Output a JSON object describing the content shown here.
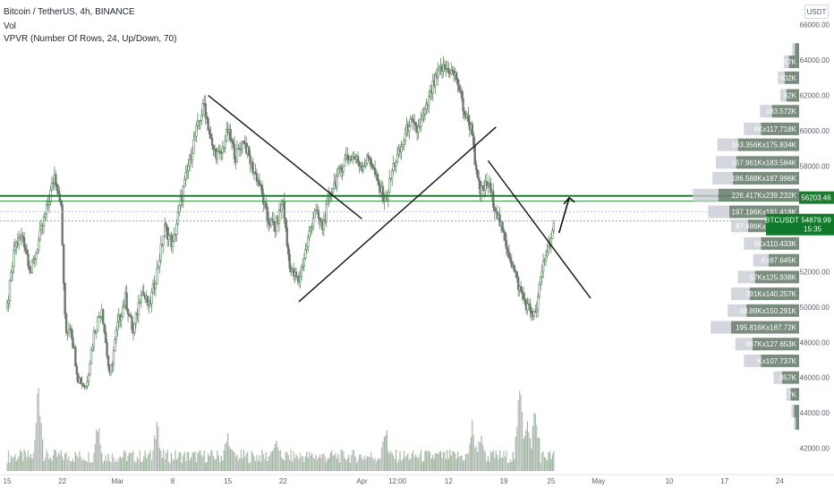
{
  "header": {
    "symbol_line": "Bitcoin / TetherUS, 4h, BINANCE",
    "volume_label": "Vol",
    "vpvr_label": "VPVR (Number Of Rows, 24, Up/Down, 70)"
  },
  "unit_button": "USDT",
  "price_marker": {
    "symbol": "BTCUSDT",
    "price": "54879.99",
    "countdown": "15:35"
  },
  "line_marker": {
    "price": "56203.46",
    "level": 56203.46
  },
  "colors": {
    "up": "#5a8a5f",
    "down": "#6d7a6d",
    "accent_green": "#1e7a2e",
    "marker_green": "#0f7a2a",
    "trend": "#111111",
    "vp_up": "#6b7f6f",
    "vp_down": "#c8ccd4"
  },
  "chart_data": {
    "type": "candlestick",
    "price_axis": [
      "66000.00",
      "64000.00",
      "62000.00",
      "60000.00",
      "58000.00",
      "56000.00",
      "52000.00",
      "50000.00",
      "48000.00",
      "46000.00",
      "44000.00",
      "42000.00"
    ],
    "price_axis_values": [
      66000,
      64000,
      62000,
      60000,
      58000,
      56000,
      52000,
      50000,
      48000,
      46000,
      44000,
      42000
    ],
    "time_axis": [
      {
        "label": "15",
        "day": 0
      },
      {
        "label": "22",
        "day": 7
      },
      {
        "label": "Mar",
        "day": 14
      },
      {
        "label": "8",
        "day": 21
      },
      {
        "label": "15",
        "day": 28
      },
      {
        "label": "22",
        "day": 35
      },
      {
        "label": "Apr",
        "day": 45
      },
      {
        "label": "12:00",
        "day": 49.5
      },
      {
        "label": "12",
        "day": 56
      },
      {
        "label": "19",
        "day": 63
      },
      {
        "label": "25",
        "day": 69
      },
      {
        "label": "May",
        "day": 75
      },
      {
        "label": "10",
        "day": 84
      },
      {
        "label": "17",
        "day": 91
      },
      {
        "label": "24",
        "day": 98
      }
    ],
    "ylim": [
      40500,
      67000
    ],
    "price_anchors": [
      [
        -1,
        51000
      ],
      [
        0,
        50000
      ],
      [
        1,
        53500
      ],
      [
        2,
        54000
      ],
      [
        3,
        52000
      ],
      [
        5,
        55500
      ],
      [
        6,
        57500
      ],
      [
        6.8,
        56000
      ],
      [
        7.4,
        48500
      ],
      [
        8,
        49000
      ],
      [
        9,
        46000
      ],
      [
        10,
        45500
      ],
      [
        11,
        48500
      ],
      [
        12,
        50000
      ],
      [
        13,
        46000
      ],
      [
        14,
        49000
      ],
      [
        15,
        50500
      ],
      [
        16,
        48500
      ],
      [
        17,
        51000
      ],
      [
        18,
        50000
      ],
      [
        19,
        52000
      ],
      [
        20,
        54500
      ],
      [
        21,
        53500
      ],
      [
        22,
        56000
      ],
      [
        23,
        58000
      ],
      [
        24,
        60000
      ],
      [
        25,
        61500
      ],
      [
        26,
        59000
      ],
      [
        27,
        58500
      ],
      [
        28,
        60000
      ],
      [
        29,
        58500
      ],
      [
        30,
        59500
      ],
      [
        31,
        58000
      ],
      [
        32,
        57000
      ],
      [
        33,
        55000
      ],
      [
        34,
        54500
      ],
      [
        35,
        56000
      ],
      [
        35.5,
        53500
      ],
      [
        36,
        52000
      ],
      [
        37,
        51500
      ],
      [
        38,
        53500
      ],
      [
        39,
        55500
      ],
      [
        40,
        54500
      ],
      [
        41,
        56500
      ],
      [
        42,
        57500
      ],
      [
        43,
        58500
      ],
      [
        44,
        58500
      ],
      [
        45,
        58000
      ],
      [
        46,
        58500
      ],
      [
        47,
        57000
      ],
      [
        48,
        56000
      ],
      [
        49,
        58000
      ],
      [
        50,
        59000
      ],
      [
        51,
        60500
      ],
      [
        52,
        60000
      ],
      [
        53,
        61000
      ],
      [
        54,
        62500
      ],
      [
        55,
        63500
      ],
      [
        56,
        63500
      ],
      [
        57,
        63000
      ],
      [
        58,
        61000
      ],
      [
        59,
        60000
      ],
      [
        59.5,
        57500
      ],
      [
        60,
        56500
      ],
      [
        61,
        57000
      ],
      [
        62,
        55500
      ],
      [
        63,
        54000
      ],
      [
        64,
        52500
      ],
      [
        65,
        51000
      ],
      [
        66,
        50000
      ],
      [
        67,
        49500
      ],
      [
        68,
        52500
      ],
      [
        69,
        54000
      ],
      [
        69.6,
        54900
      ]
    ],
    "volume_spikes": [
      [
        4,
        0.95
      ],
      [
        11.5,
        0.6
      ],
      [
        19,
        0.55
      ],
      [
        28,
        0.45
      ],
      [
        34,
        0.4
      ],
      [
        48,
        0.5
      ],
      [
        59,
        0.55
      ],
      [
        60,
        0.45
      ],
      [
        65,
        1.0
      ],
      [
        67,
        0.75
      ],
      [
        66,
        0.6
      ]
    ],
    "trendlines": [
      {
        "from": [
          25.5,
          62000
        ],
        "to": [
          45,
          55000
        ]
      },
      {
        "from": [
          37,
          50300
        ],
        "to": [
          62,
          60200
        ]
      },
      {
        "from": [
          61,
          58300
        ],
        "to": [
          74,
          50500
        ]
      }
    ],
    "arrow": {
      "from": [
        70,
        54200
      ],
      "to": [
        71.3,
        56200
      ]
    },
    "horizontal_levels": [
      {
        "price": 56300,
        "color": "#1e7a2e",
        "width": 2
      },
      {
        "price": 56000,
        "color": "#2d8a3c",
        "width": 1
      },
      {
        "price": 55400,
        "color": "#c0c4cc",
        "width": 1,
        "dash": true
      },
      {
        "price": 54880,
        "color": "#9aa0a8",
        "width": 1,
        "dash": true
      }
    ],
    "volume_profile": [
      {
        "price": 64600,
        "label": "",
        "up": 0.05,
        "down": 0.03
      },
      {
        "price": 63900,
        "label": "57K",
        "up": 0.12,
        "down": 0.06
      },
      {
        "price": 63000,
        "label": "902K",
        "up": 0.17,
        "down": 0.08
      },
      {
        "price": 62000,
        "label": "82K",
        "up": 0.15,
        "down": 0.07
      },
      {
        "price": 61100,
        "label": "x83.572K",
        "up": 0.32,
        "down": 0.14
      },
      {
        "price": 60100,
        "label": "8Kx117.718K",
        "up": 0.45,
        "down": 0.2
      },
      {
        "price": 59200,
        "label": "163.356Kx175.834K",
        "up": 0.72,
        "down": 0.24
      },
      {
        "price": 58200,
        "label": "167.961Kx183.584K",
        "up": 0.74,
        "down": 0.24
      },
      {
        "price": 57300,
        "label": "186.588Kx187.996K",
        "up": 0.78,
        "down": 0.24
      },
      {
        "price": 56350,
        "label": "226.417Kx239.232K",
        "up": 0.95,
        "down": 0.3
      },
      {
        "price": 55400,
        "label": "197.196Kx191.418K",
        "up": 0.82,
        "down": 0.25
      },
      {
        "price": 54600,
        "label": "67.486Kx147.643K",
        "up": 0.6,
        "down": 0.2
      },
      {
        "price": 53600,
        "label": "6Kx110.433K",
        "up": 0.45,
        "down": 0.2
      },
      {
        "price": 52650,
        "label": "Kx87.645K",
        "up": 0.36,
        "down": 0.18
      },
      {
        "price": 51700,
        "label": "57Kx125.938K",
        "up": 0.52,
        "down": 0.2
      },
      {
        "price": 50750,
        "label": "391Kx140.257K",
        "up": 0.58,
        "down": 0.22
      },
      {
        "price": 49800,
        "label": "48.89Kx150.291K",
        "up": 0.62,
        "down": 0.22
      },
      {
        "price": 48850,
        "label": "195.816Kx187.72K",
        "up": 0.8,
        "down": 0.24
      },
      {
        "price": 47900,
        "label": "487Kx127.653K",
        "up": 0.55,
        "down": 0.2
      },
      {
        "price": 46950,
        "label": "Kx107.737K",
        "up": 0.45,
        "down": 0.2
      },
      {
        "price": 46000,
        "label": "857K",
        "up": 0.2,
        "down": 0.1
      },
      {
        "price": 45050,
        "label": "7K",
        "up": 0.1,
        "down": 0.05
      },
      {
        "price": 44100,
        "label": "",
        "up": 0.06,
        "down": 0.03
      },
      {
        "price": 43400,
        "label": "",
        "up": 0.04,
        "down": 0.02
      }
    ]
  }
}
